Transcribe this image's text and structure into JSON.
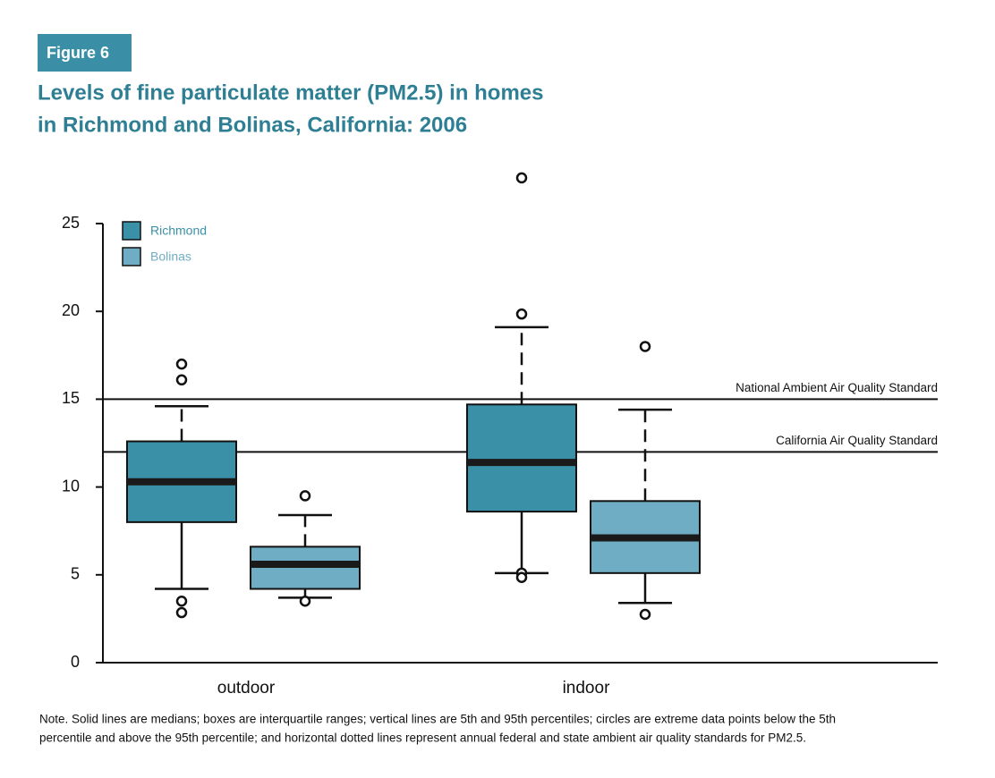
{
  "figure_label": "Figure 6",
  "chart_data": {
    "type": "box",
    "title": [
      "Levels of fine particulate matter (PM2.5) in homes",
      "in Richmond and Bolinas, California: 2006"
    ],
    "categories": [
      "outdoor",
      "indoor"
    ],
    "ylim": [
      0,
      25
    ],
    "yticks": [
      0,
      5,
      10,
      15,
      20,
      25
    ],
    "legend": "top-left",
    "series": [
      {
        "name": "Richmond",
        "color": "#3a90a7",
        "whislo": [
          4.2,
          5.1
        ],
        "q1": [
          8.0,
          8.6
        ],
        "med": [
          10.3,
          11.4
        ],
        "q3": [
          12.6,
          14.7
        ],
        "whishi": [
          14.6,
          19.1
        ],
        "outliers": [
          [
            17.0,
            16.1,
            3.5,
            2.85
          ],
          [
            27.6,
            19.85,
            5.1,
            4.85
          ]
        ]
      },
      {
        "name": "Bolinas",
        "color": "#6fadc4",
        "whislo": [
          3.7,
          3.4
        ],
        "q1": [
          4.2,
          5.1
        ],
        "med": [
          5.6,
          7.1
        ],
        "q3": [
          6.6,
          9.2
        ],
        "whishi": [
          8.4,
          14.4
        ],
        "outliers": [
          [
            9.5,
            3.5
          ],
          [
            18.0,
            2.75
          ]
        ]
      }
    ],
    "reference_lines": [
      {
        "value": 15,
        "label": "National Ambient Air Quality Standard"
      },
      {
        "value": 12,
        "label": "California Air Quality Standard"
      }
    ],
    "note": [
      "Note. Solid lines are medians; boxes are interquartile ranges; vertical lines are 5th and 95th percentiles; circles are extreme data points below the 5th",
      "percentile and above the 95th percentile; and horizontal dotted lines represent annual federal and state ambient air quality standards for PM2.5."
    ]
  }
}
